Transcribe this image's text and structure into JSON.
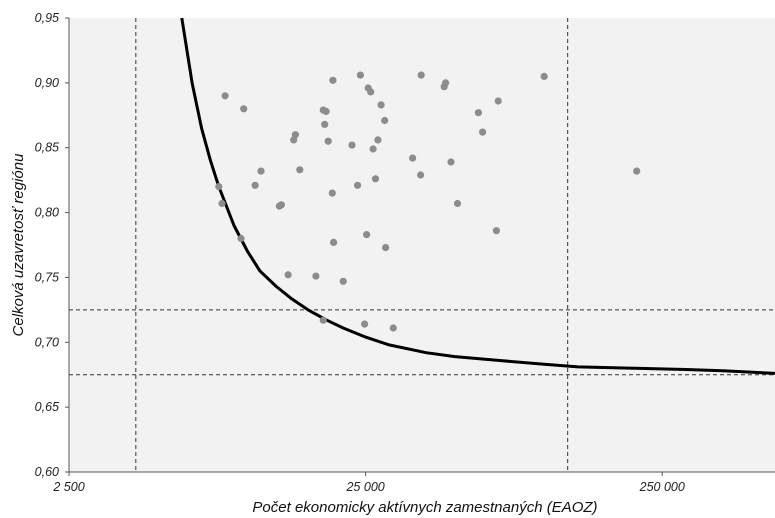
{
  "chart_data": {
    "type": "scatter",
    "title": "",
    "xlabel": "Počet ekonomicky aktívnych zamestnaných (EAOZ)",
    "ylabel": "Celková uzavretosť regiónu",
    "x_scale": "log",
    "xlim": [
      2500,
      600000
    ],
    "ylim": [
      0.6,
      0.95
    ],
    "x_ticks": [
      2500,
      25000,
      250000
    ],
    "x_tick_labels": [
      "2 500",
      "25 000",
      "250 000"
    ],
    "y_ticks": [
      0.6,
      0.65,
      0.7,
      0.75,
      0.8,
      0.85,
      0.9,
      0.95
    ],
    "y_tick_labels": [
      "0,60",
      "0,65",
      "0,70",
      "0,75",
      "0,80",
      "0,85",
      "0,90",
      "0,95"
    ],
    "grid": false,
    "legend": "none",
    "colors": {
      "points": "#8c8c8c",
      "curve": "#000000",
      "plot_background": "#f2f2f2",
      "guides": "#333333"
    },
    "series": [
      {
        "type": "scatter",
        "points": [
          [
            8400,
            0.89
          ],
          [
            9700,
            0.88
          ],
          [
            8000,
            0.82
          ],
          [
            8200,
            0.807
          ],
          [
            9500,
            0.78
          ],
          [
            10600,
            0.821
          ],
          [
            11100,
            0.832
          ],
          [
            13000,
            0.806
          ],
          [
            12800,
            0.805
          ],
          [
            13700,
            0.752
          ],
          [
            14300,
            0.856
          ],
          [
            14500,
            0.86
          ],
          [
            15000,
            0.833
          ],
          [
            17000,
            0.751
          ],
          [
            18000,
            0.879
          ],
          [
            18400,
            0.878
          ],
          [
            18200,
            0.868
          ],
          [
            18700,
            0.855
          ],
          [
            19400,
            0.902
          ],
          [
            19300,
            0.815
          ],
          [
            19500,
            0.777
          ],
          [
            21000,
            0.747
          ],
          [
            18000,
            0.717
          ],
          [
            22500,
            0.852
          ],
          [
            24000,
            0.906
          ],
          [
            25500,
            0.896
          ],
          [
            26000,
            0.893
          ],
          [
            26500,
            0.849
          ],
          [
            27500,
            0.856
          ],
          [
            28200,
            0.883
          ],
          [
            29000,
            0.871
          ],
          [
            27000,
            0.826
          ],
          [
            23500,
            0.821
          ],
          [
            25200,
            0.783
          ],
          [
            29200,
            0.773
          ],
          [
            24800,
            0.714
          ],
          [
            31000,
            0.711
          ],
          [
            36000,
            0.842
          ],
          [
            38500,
            0.906
          ],
          [
            38300,
            0.829
          ],
          [
            46000,
            0.897
          ],
          [
            46500,
            0.9
          ],
          [
            48500,
            0.839
          ],
          [
            51000,
            0.807
          ],
          [
            60000,
            0.877
          ],
          [
            62000,
            0.862
          ],
          [
            70000,
            0.886
          ],
          [
            69000,
            0.786
          ],
          [
            100000,
            0.905
          ],
          [
            205000,
            0.832
          ]
        ]
      },
      {
        "type": "line",
        "points": [
          [
            6000,
            0.95
          ],
          [
            6500,
            0.9
          ],
          [
            7000,
            0.865
          ],
          [
            7500,
            0.84
          ],
          [
            8000,
            0.82
          ],
          [
            9000,
            0.79
          ],
          [
            10000,
            0.77
          ],
          [
            11000,
            0.755
          ],
          [
            12500,
            0.743
          ],
          [
            14000,
            0.734
          ],
          [
            16000,
            0.725
          ],
          [
            18500,
            0.717
          ],
          [
            21000,
            0.711
          ],
          [
            25000,
            0.704
          ],
          [
            30000,
            0.698
          ],
          [
            40000,
            0.692
          ],
          [
            50000,
            0.689
          ],
          [
            70000,
            0.686
          ],
          [
            100000,
            0.683
          ],
          [
            130000,
            0.681
          ],
          [
            200000,
            0.68
          ],
          [
            300000,
            0.679
          ],
          [
            400000,
            0.678
          ],
          [
            600000,
            0.676
          ]
        ]
      }
    ],
    "guide_lines": {
      "x": [
        4200,
        120000
      ],
      "y": [
        0.725,
        0.675
      ]
    }
  }
}
